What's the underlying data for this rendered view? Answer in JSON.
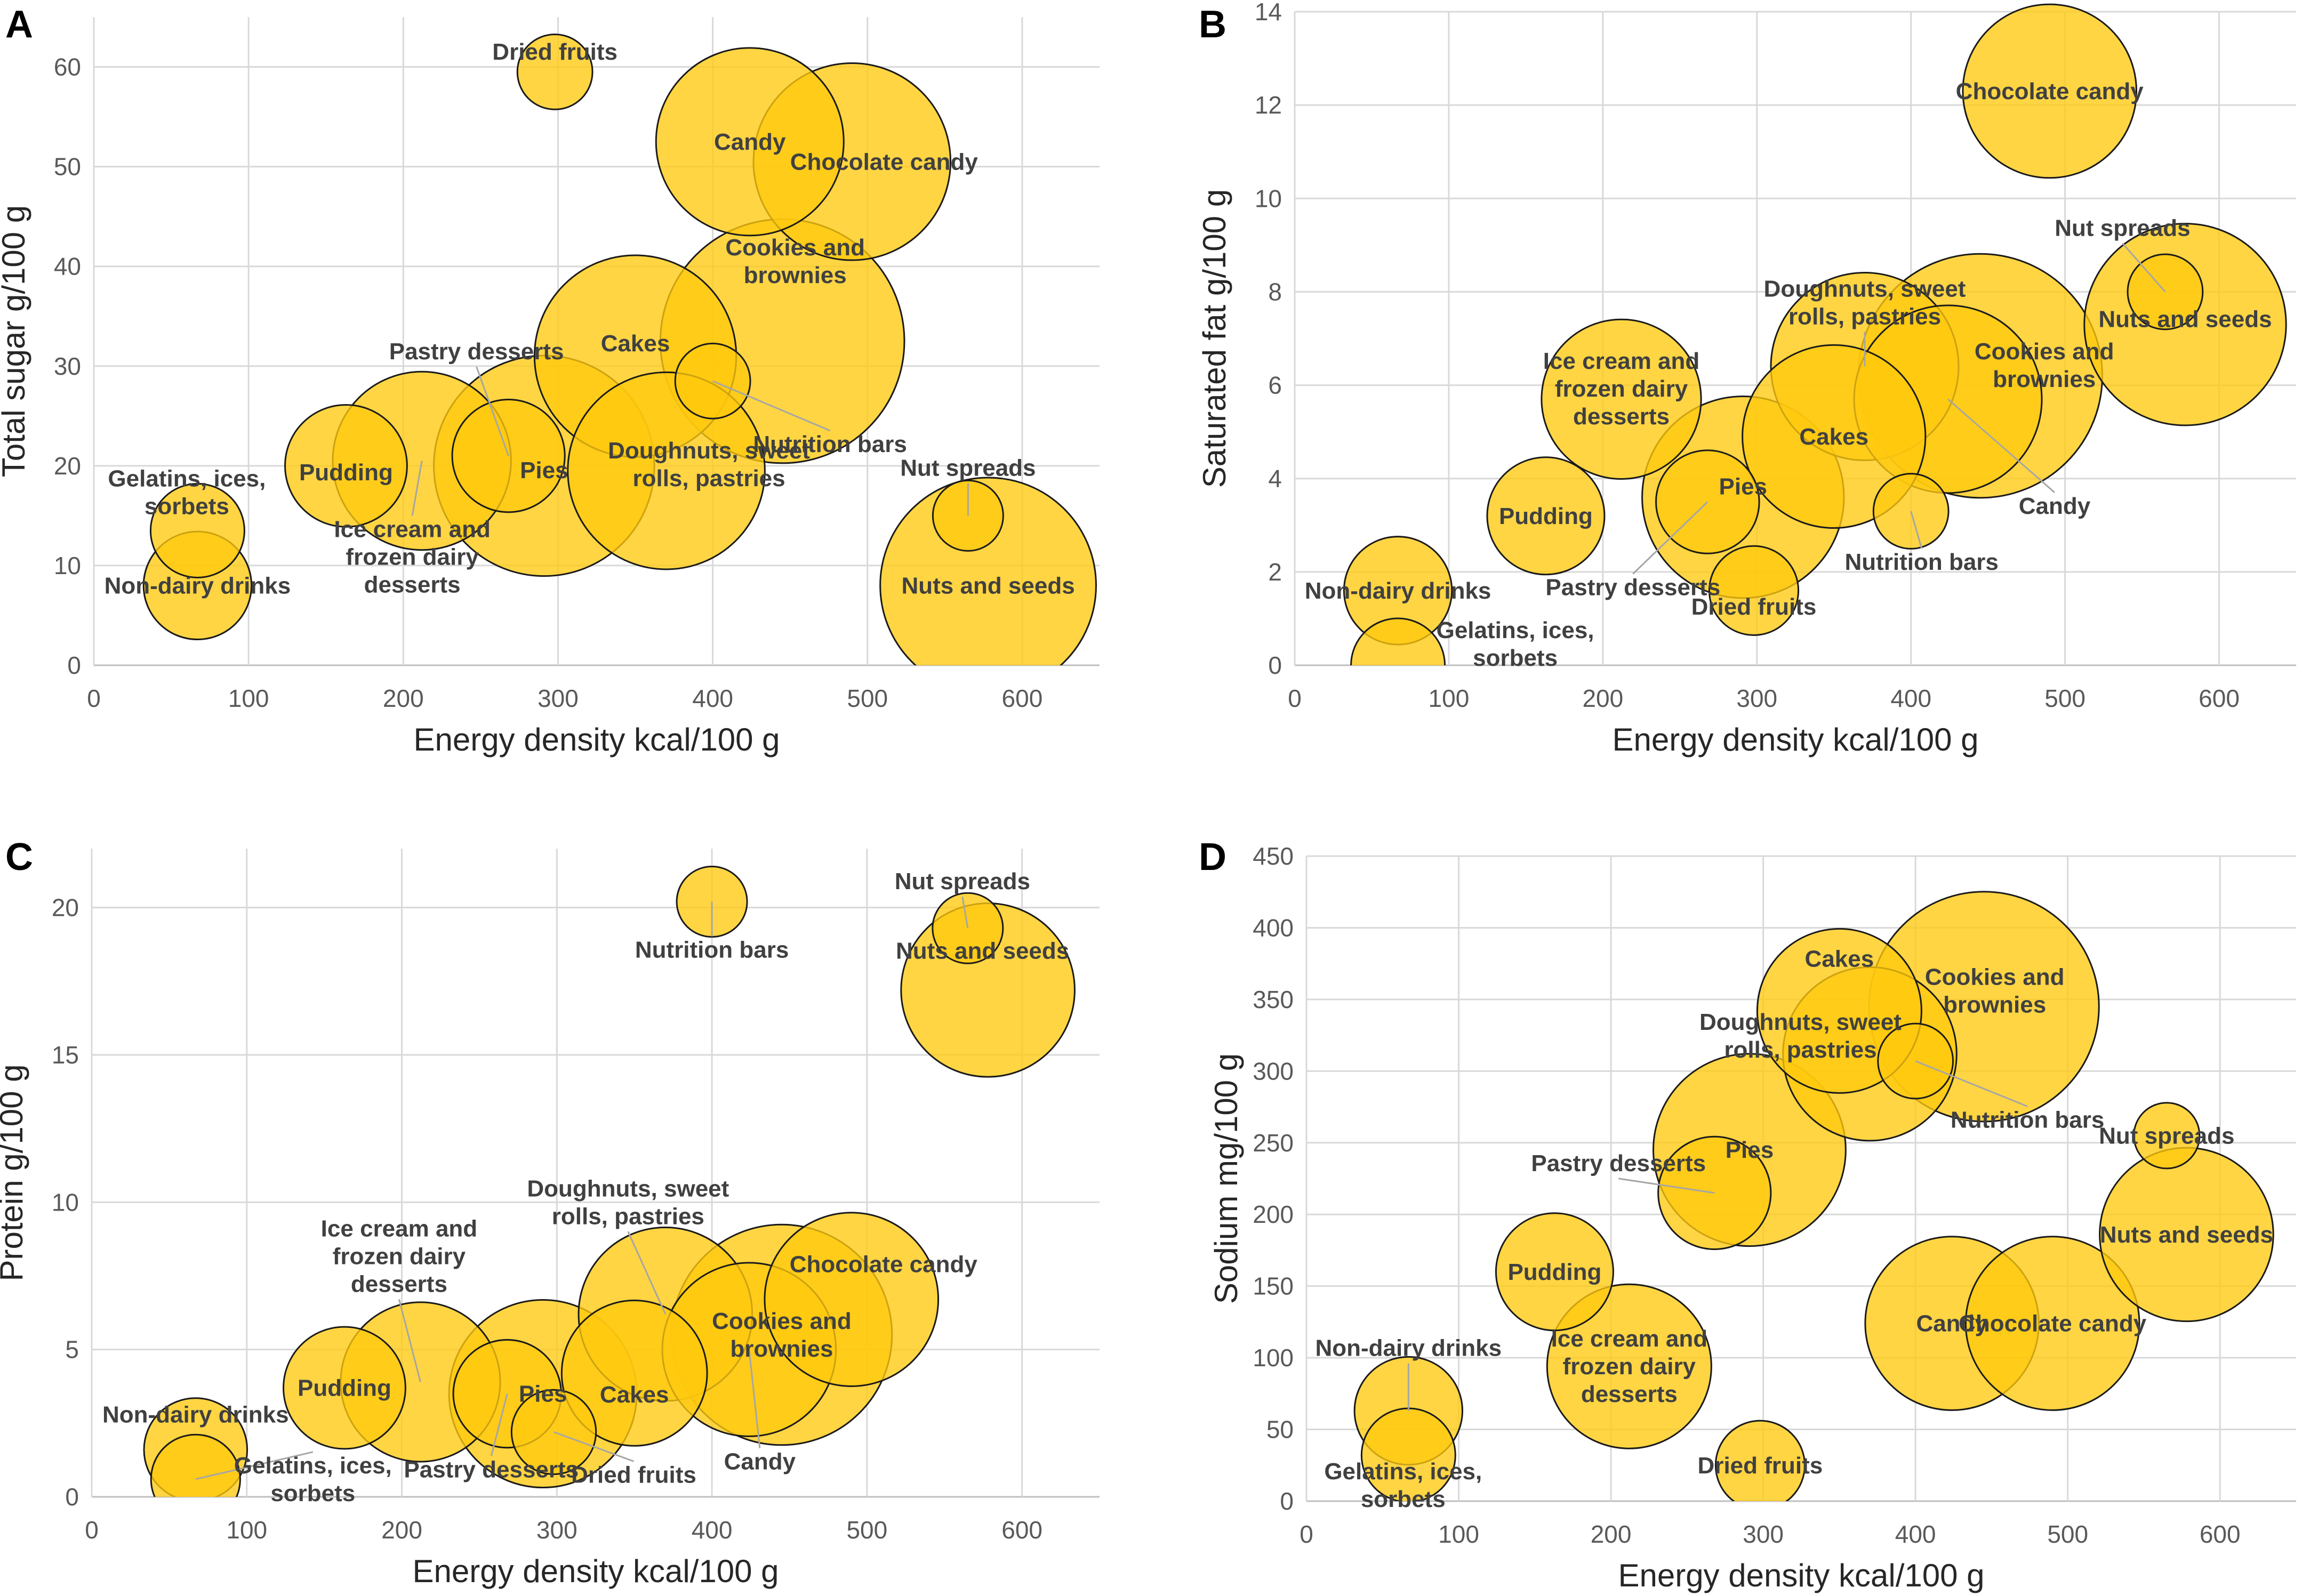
{
  "colors": {
    "bubble": "#ffc90e",
    "grid": "#d9d9d9",
    "text": "#404040"
  },
  "chart_data": [
    {
      "panel": "A",
      "type": "scatter",
      "xlabel": "Energy density kcal/100 g",
      "ylabel": "Total sugar g/100 g",
      "xlim": [
        0,
        650
      ],
      "ylim": [
        0,
        65
      ],
      "xticks": [
        0,
        100,
        200,
        300,
        400,
        500,
        600
      ],
      "yticks": [
        0,
        10,
        20,
        30,
        40,
        50,
        60
      ],
      "points": [
        {
          "label": "Gelatins, ices, sorbets",
          "x": 67,
          "y": 13.5,
          "size": 1
        },
        {
          "label": "Non-dairy drinks",
          "x": 67,
          "y": 8,
          "size": 1.15
        },
        {
          "label": "Pudding",
          "x": 163,
          "y": 20,
          "size": 1.3
        },
        {
          "label": "Ice cream and frozen dairy desserts",
          "x": 212,
          "y": 20.5,
          "size": 1.9
        },
        {
          "label": "Pastry desserts",
          "x": 268,
          "y": 21,
          "size": 1.2
        },
        {
          "label": "Pies",
          "x": 291,
          "y": 20,
          "size": 2.35
        },
        {
          "label": "Dried fruits",
          "x": 298,
          "y": 59.5,
          "size": 0.8
        },
        {
          "label": "Cakes",
          "x": 350,
          "y": 31,
          "size": 2.15
        },
        {
          "label": "Doughnuts, sweet rolls, pastries",
          "x": 370,
          "y": 19.5,
          "size": 2.1
        },
        {
          "label": "Nutrition bars",
          "x": 400,
          "y": 28.5,
          "size": 0.8
        },
        {
          "label": "Candy",
          "x": 424,
          "y": 52.5,
          "size": 2.0
        },
        {
          "label": "Cookies and brownies",
          "x": 445,
          "y": 32.5,
          "size": 2.6
        },
        {
          "label": "Chocolate candy",
          "x": 490,
          "y": 50.5,
          "size": 2.1
        },
        {
          "label": "Nut spreads",
          "x": 565,
          "y": 15,
          "size": 0.75
        },
        {
          "label": "Nuts and seeds",
          "x": 578,
          "y": 8,
          "size": 2.3
        }
      ]
    },
    {
      "panel": "B",
      "type": "scatter",
      "xlabel": "Energy density kcal/100 g",
      "ylabel": "Saturated fat g/100 g",
      "xlim": [
        0,
        650
      ],
      "ylim": [
        0,
        14
      ],
      "xticks": [
        0,
        100,
        200,
        300,
        400,
        500,
        600
      ],
      "yticks": [
        0,
        2,
        4,
        6,
        8,
        10,
        12,
        14
      ],
      "points": [
        {
          "label": "Gelatins, ices, sorbets",
          "x": 67,
          "y": 0,
          "size": 1
        },
        {
          "label": "Non-dairy drinks",
          "x": 67,
          "y": 1.6,
          "size": 1.15
        },
        {
          "label": "Pudding",
          "x": 163,
          "y": 3.2,
          "size": 1.25
        },
        {
          "label": "Ice cream and frozen dairy desserts",
          "x": 212,
          "y": 5.7,
          "size": 1.7
        },
        {
          "label": "Pastry desserts",
          "x": 268,
          "y": 3.5,
          "size": 1.1
        },
        {
          "label": "Pies",
          "x": 291,
          "y": 3.6,
          "size": 2.15
        },
        {
          "label": "Dried fruits",
          "x": 298,
          "y": 1.6,
          "size": 0.95
        },
        {
          "label": "Cakes",
          "x": 350,
          "y": 4.9,
          "size": 1.95
        },
        {
          "label": "Doughnuts, sweet rolls, pastries",
          "x": 370,
          "y": 6.4,
          "size": 2.0
        },
        {
          "label": "Nutrition bars",
          "x": 400,
          "y": 3.3,
          "size": 0.8
        },
        {
          "label": "Candy",
          "x": 424,
          "y": 5.7,
          "size": 2.0
        },
        {
          "label": "Cookies and brownies",
          "x": 445,
          "y": 6.2,
          "size": 2.6
        },
        {
          "label": "Chocolate candy",
          "x": 490,
          "y": 12.3,
          "size": 1.85
        },
        {
          "label": "Nut spreads",
          "x": 565,
          "y": 8.0,
          "size": 0.8
        },
        {
          "label": "Nuts and seeds",
          "x": 578,
          "y": 7.3,
          "size": 2.15
        }
      ]
    },
    {
      "panel": "C",
      "type": "scatter",
      "xlabel": "Energy density kcal/100 g",
      "ylabel": "Protein g/100 g",
      "xlim": [
        0,
        650
      ],
      "ylim": [
        0,
        22
      ],
      "xticks": [
        0,
        100,
        200,
        300,
        400,
        500,
        600
      ],
      "yticks": [
        0,
        5,
        10,
        15,
        20
      ],
      "points": [
        {
          "label": "Gelatins, ices, sorbets",
          "x": 67,
          "y": 0.6,
          "size": 0.95
        },
        {
          "label": "Non-dairy drinks",
          "x": 67,
          "y": 1.6,
          "size": 1.1
        },
        {
          "label": "Pudding",
          "x": 163,
          "y": 3.7,
          "size": 1.3
        },
        {
          "label": "Ice cream and frozen dairy desserts",
          "x": 212,
          "y": 3.9,
          "size": 1.7
        },
        {
          "label": "Pastry desserts",
          "x": 268,
          "y": 3.5,
          "size": 1.15
        },
        {
          "label": "Pies",
          "x": 291,
          "y": 3.5,
          "size": 2.0
        },
        {
          "label": "Dried fruits",
          "x": 298,
          "y": 2.2,
          "size": 0.9
        },
        {
          "label": "Cakes",
          "x": 350,
          "y": 4.2,
          "size": 1.55
        },
        {
          "label": "Doughnuts, sweet rolls, pastries",
          "x": 370,
          "y": 6.2,
          "size": 1.85
        },
        {
          "label": "Nutrition bars",
          "x": 400,
          "y": 20.2,
          "size": 0.75
        },
        {
          "label": "Candy",
          "x": 424,
          "y": 5.0,
          "size": 1.85
        },
        {
          "label": "Cookies and brownies",
          "x": 445,
          "y": 5.5,
          "size": 2.35
        },
        {
          "label": "Chocolate candy",
          "x": 490,
          "y": 6.7,
          "size": 1.85
        },
        {
          "label": "Nut spreads",
          "x": 565,
          "y": 19.3,
          "size": 0.75
        },
        {
          "label": "Nuts and seeds",
          "x": 578,
          "y": 17.2,
          "size": 1.85
        }
      ]
    },
    {
      "panel": "D",
      "type": "scatter",
      "xlabel": "Energy density kcal/100 g",
      "ylabel": "Sodium mg/100 g",
      "xlim": [
        0,
        650
      ],
      "ylim": [
        0,
        450
      ],
      "xticks": [
        0,
        100,
        200,
        300,
        400,
        500,
        600
      ],
      "yticks": [
        0,
        50,
        100,
        150,
        200,
        250,
        300,
        350,
        400,
        450
      ],
      "points": [
        {
          "label": "Gelatins, ices, sorbets",
          "x": 67,
          "y": 32,
          "size": 1.0
        },
        {
          "label": "Non-dairy drinks",
          "x": 67,
          "y": 63,
          "size": 1.15
        },
        {
          "label": "Pudding",
          "x": 163,
          "y": 160,
          "size": 1.25
        },
        {
          "label": "Ice cream and frozen dairy desserts",
          "x": 212,
          "y": 94,
          "size": 1.75
        },
        {
          "label": "Pastry desserts",
          "x": 268,
          "y": 215,
          "size": 1.2
        },
        {
          "label": "Pies",
          "x": 291,
          "y": 245,
          "size": 2.05
        },
        {
          "label": "Dried fruits",
          "x": 298,
          "y": 25,
          "size": 0.95
        },
        {
          "label": "Cakes",
          "x": 350,
          "y": 342,
          "size": 1.75
        },
        {
          "label": "Doughnuts, sweet rolls, pastries",
          "x": 370,
          "y": 312,
          "size": 1.85
        },
        {
          "label": "Nutrition bars",
          "x": 400,
          "y": 307,
          "size": 0.8
        },
        {
          "label": "Candy",
          "x": 424,
          "y": 124,
          "size": 1.85
        },
        {
          "label": "Cookies and brownies",
          "x": 445,
          "y": 345,
          "size": 2.45
        },
        {
          "label": "Chocolate candy",
          "x": 490,
          "y": 124,
          "size": 1.85
        },
        {
          "label": "Nut spreads",
          "x": 565,
          "y": 255,
          "size": 0.7
        },
        {
          "label": "Nuts and seeds",
          "x": 578,
          "y": 186,
          "size": 1.85
        }
      ]
    }
  ]
}
